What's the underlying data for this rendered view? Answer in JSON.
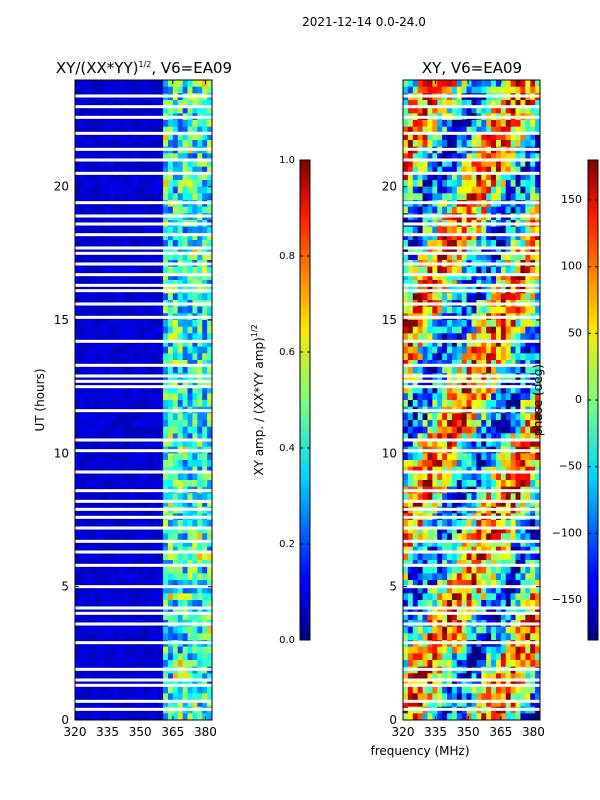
{
  "suptitle": "2021-12-14 0.0-24.0",
  "chart_data": [
    {
      "type": "heatmap",
      "title_main": "XY/(XX*YY)",
      "title_sup": "1/2",
      "title_tail": ", V6=EA09",
      "ylabel": "UT (hours)",
      "xlim": [
        320,
        383
      ],
      "ylim": [
        0,
        24
      ],
      "xticks": [
        320,
        335,
        350,
        365,
        380
      ],
      "yticks": [
        0,
        5,
        10,
        15,
        20
      ],
      "colorbar": {
        "label_main": "XY amp. / (XX*YY amp)",
        "label_sup": "1/2",
        "range": [
          0.0,
          1.0
        ],
        "ticks": [
          "0.0",
          "0.2",
          "0.4",
          "0.6",
          "0.8",
          "1.0"
        ],
        "colormap": "jet"
      },
      "gaps_ut": [
        0.4,
        0.7,
        1.3,
        1.5,
        1.9,
        2.9,
        3.6,
        4.0,
        4.2,
        5.0,
        5.8,
        6.3,
        6.7,
        7.2,
        7.6,
        7.9,
        8.2,
        8.6,
        9.3,
        10.1,
        10.5,
        11.6,
        12.5,
        12.7,
        12.9,
        13.3,
        14.2,
        15.1,
        15.6,
        16.1,
        16.3,
        16.7,
        17.1,
        17.5,
        17.7,
        18.2,
        18.6,
        18.9,
        19.4,
        20.5,
        21.0,
        21.4,
        22.0,
        22.6,
        23.0,
        23.4
      ]
    },
    {
      "type": "heatmap",
      "title": "XY, V6=EA09",
      "ylabel": "",
      "xlim": [
        320,
        383
      ],
      "ylim": [
        0,
        24
      ],
      "xticks": [
        320,
        335,
        350,
        365,
        380
      ],
      "yticks": [
        0,
        5,
        10,
        15,
        20
      ],
      "colorbar": {
        "label": "phase (deg)",
        "range": [
          -180,
          180
        ],
        "ticks": [
          "150",
          "100",
          "50",
          "0",
          "−50",
          "−100",
          "−150"
        ],
        "colormap": "jet"
      },
      "gaps_ut": [
        0.4,
        0.7,
        1.3,
        1.5,
        1.9,
        2.9,
        3.6,
        4.0,
        4.2,
        5.0,
        5.8,
        6.3,
        6.7,
        7.2,
        7.6,
        7.9,
        8.2,
        8.6,
        9.3,
        10.1,
        10.5,
        11.6,
        12.5,
        12.7,
        12.9,
        13.3,
        14.2,
        15.1,
        15.6,
        16.1,
        16.3,
        16.7,
        17.1,
        17.5,
        17.7,
        18.2,
        18.6,
        18.9,
        19.4,
        20.5,
        21.0,
        21.4,
        22.0,
        22.6,
        23.0,
        23.4
      ]
    }
  ],
  "shared_xlabel": "frequency (MHz)"
}
